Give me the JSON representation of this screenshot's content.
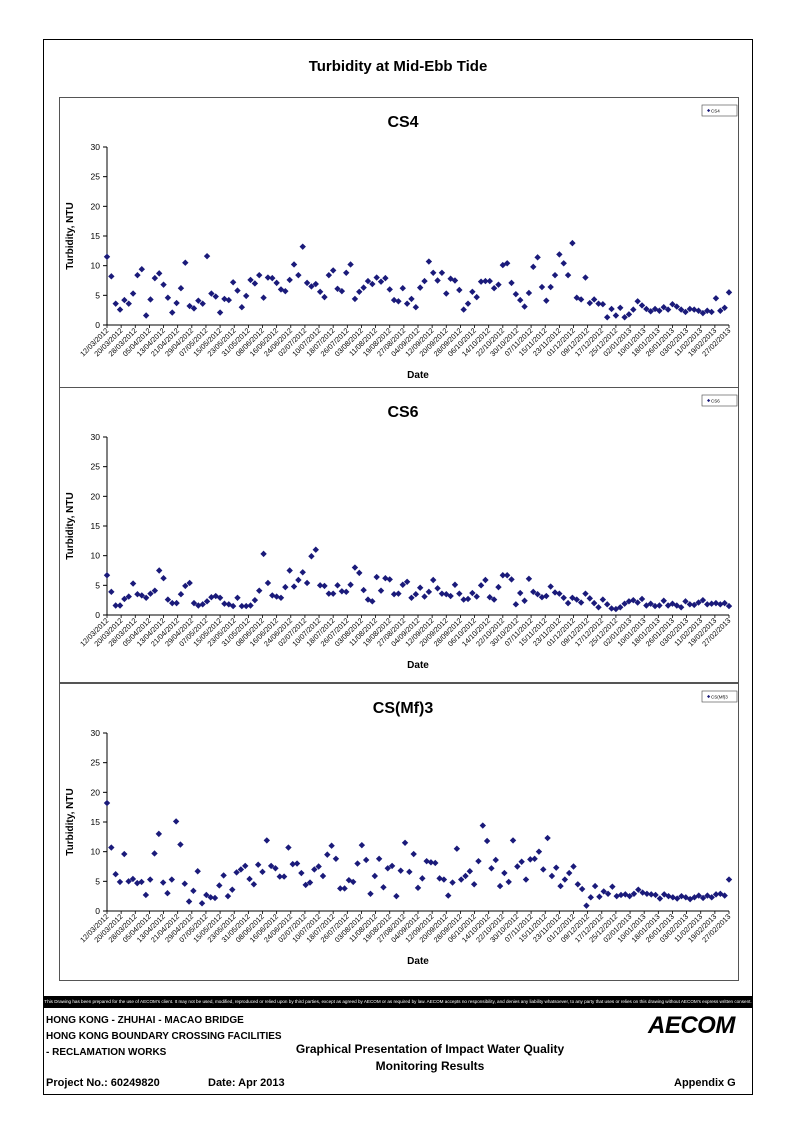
{
  "page": {
    "title": "Turbidity at Mid-Ebb Tide",
    "disclaimer": "This Drawing has been prepared for the use of AECOM's client. It may not be used, modified, reproduced or relied upon by third parties, except as agreed by AECOM or as required by law. AECOM accepts no responsibility, and denies any liability whatsoever, to any party that uses or relies on this drawing without AECOM's express written consent.",
    "footer": {
      "line1": "HONG KONG - ZHUHAI - MACAO BRIDGE",
      "line2": "HONG KONG BOUNDARY CROSSING FACILITIES",
      "line3": "- RECLAMATION WORKS",
      "center1": "Graphical Presentation of Impact Water Quality",
      "center2": "Monitoring Results",
      "project": "Project No.: 60249820",
      "date": "Date: Apr 2013",
      "appendix": "Appendix G",
      "logo": "AECOM"
    }
  },
  "chart_data": [
    {
      "type": "scatter",
      "title": "CS4",
      "xlabel": "Date",
      "ylabel": "Turbidity, NTU",
      "ylim": [
        0,
        30
      ],
      "yticks": [
        0,
        5,
        10,
        15,
        20,
        25,
        30
      ],
      "legend": "top-right",
      "marker": "diamond",
      "color": "#1a1a7a",
      "x_tick_labels": [
        "12/03/2012",
        "20/03/2012",
        "28/03/2012",
        "05/04/2012",
        "13/04/2012",
        "21/04/2012",
        "29/04/2012",
        "07/05/2012",
        "15/05/2012",
        "23/05/2012",
        "31/05/2012",
        "08/06/2012",
        "16/06/2012",
        "24/06/2012",
        "02/07/2012",
        "10/07/2012",
        "18/07/2012",
        "26/07/2012",
        "03/08/2012",
        "11/08/2012",
        "19/08/2012",
        "27/08/2012",
        "04/09/2012",
        "12/09/2012",
        "20/09/2012",
        "28/09/2012",
        "06/10/2012",
        "14/10/2012",
        "22/10/2012",
        "30/10/2012",
        "07/11/2012",
        "15/11/2012",
        "23/11/2012",
        "01/12/2012",
        "09/12/2012",
        "17/12/2012",
        "25/12/2012",
        "02/01/2013",
        "10/01/2013",
        "18/01/2013",
        "26/01/2013",
        "03/02/2013",
        "11/02/2013",
        "19/02/2013",
        "27/02/2013"
      ],
      "series": [
        {
          "name": "CS4",
          "values": [
            11.5,
            8.2,
            3.6,
            2.6,
            4.2,
            3.6,
            5.3,
            8.4,
            9.4,
            1.6,
            4.3,
            7.9,
            8.7,
            6.8,
            4.6,
            2.1,
            3.7,
            6.2,
            10.5,
            3.2,
            2.8,
            4.1,
            3.6,
            11.6,
            5.3,
            4.8,
            2.1,
            4.4,
            4.2,
            7.2,
            5.8,
            3.0,
            4.9,
            7.6,
            7.0,
            8.4,
            4.6,
            8.0,
            7.9,
            7.1,
            6.0,
            5.7,
            7.6,
            10.2,
            8.4,
            13.2,
            7.1,
            6.5,
            6.9,
            5.6,
            4.7,
            8.4,
            9.2,
            6.1,
            5.7,
            8.8,
            10.2,
            4.4,
            5.6,
            6.3,
            7.4,
            6.9,
            8.0,
            7.3,
            7.9,
            6.0,
            4.2,
            4.0,
            6.2,
            3.6,
            4.4,
            3.0,
            6.3,
            7.4,
            10.7,
            8.8,
            7.5,
            8.8,
            5.3,
            7.8,
            7.5,
            5.9,
            2.6,
            3.6,
            5.6,
            4.7,
            7.3,
            7.4,
            7.4,
            6.2,
            6.8,
            10.1,
            10.4,
            7.1,
            5.2,
            4.2,
            3.1,
            5.4,
            9.8,
            11.4,
            6.4,
            4.1,
            6.4,
            8.4,
            11.9,
            10.4,
            8.4,
            13.8,
            4.6,
            4.3,
            8.0,
            3.7,
            4.3,
            3.6,
            3.5,
            1.3,
            2.7,
            1.6,
            2.9,
            1.3,
            1.8,
            2.6,
            4.0,
            3.3,
            2.7,
            2.3,
            2.7,
            2.4,
            3.0,
            2.6,
            3.5,
            3.1,
            2.6,
            2.2,
            2.7,
            2.6,
            2.4,
            2.0,
            2.4,
            2.2,
            4.5,
            2.4,
            2.9,
            5.5
          ]
        }
      ]
    },
    {
      "type": "scatter",
      "title": "CS6",
      "xlabel": "Date",
      "ylabel": "Turbidity, NTU",
      "ylim": [
        0,
        30
      ],
      "yticks": [
        0,
        5,
        10,
        15,
        20,
        25,
        30
      ],
      "legend": "top-right",
      "marker": "diamond",
      "color": "#1a1a7a",
      "x_tick_labels": [
        "12/03/2012",
        "20/03/2012",
        "28/03/2012",
        "05/04/2012",
        "13/04/2012",
        "21/04/2012",
        "29/04/2012",
        "07/05/2012",
        "15/05/2012",
        "23/05/2012",
        "31/05/2012",
        "08/06/2012",
        "16/06/2012",
        "24/06/2012",
        "02/07/2012",
        "10/07/2012",
        "18/07/2012",
        "26/07/2012",
        "03/08/2012",
        "11/08/2012",
        "19/08/2012",
        "27/08/2012",
        "04/09/2012",
        "12/09/2012",
        "20/09/2012",
        "28/09/2012",
        "06/10/2012",
        "14/10/2012",
        "22/10/2012",
        "30/10/2012",
        "07/11/2012",
        "15/11/2012",
        "23/11/2012",
        "01/12/2012",
        "09/12/2012",
        "17/12/2012",
        "25/12/2012",
        "02/01/2013",
        "10/01/2013",
        "18/01/2013",
        "26/01/2013",
        "03/02/2013",
        "11/02/2013",
        "19/02/2013",
        "27/02/2013"
      ],
      "series": [
        {
          "name": "CS6",
          "values": [
            6.7,
            3.9,
            1.6,
            1.6,
            2.7,
            3.1,
            5.3,
            3.5,
            3.3,
            2.9,
            3.6,
            4.1,
            7.5,
            6.2,
            2.6,
            2.0,
            2.0,
            3.5,
            4.9,
            5.4,
            2.0,
            1.6,
            1.8,
            2.3,
            3.0,
            3.2,
            2.9,
            1.9,
            1.8,
            1.5,
            2.9,
            1.5,
            1.5,
            1.6,
            2.5,
            4.1,
            10.3,
            5.4,
            3.3,
            3.1,
            2.9,
            4.7,
            7.5,
            4.8,
            5.9,
            7.2,
            5.4,
            9.9,
            11.0,
            5.0,
            4.9,
            3.6,
            3.6,
            5.0,
            4.0,
            3.9,
            5.1,
            8.0,
            7.1,
            4.2,
            2.6,
            2.3,
            6.4,
            4.1,
            6.2,
            6.0,
            3.5,
            3.6,
            5.1,
            5.6,
            2.9,
            3.5,
            4.6,
            3.1,
            3.9,
            5.9,
            4.5,
            3.6,
            3.5,
            3.2,
            5.1,
            3.6,
            2.6,
            2.7,
            3.7,
            3.1,
            5.0,
            5.9,
            3.0,
            2.6,
            4.7,
            6.7,
            6.7,
            6.0,
            1.8,
            3.7,
            2.4,
            6.1,
            3.9,
            3.5,
            3.0,
            3.2,
            4.8,
            3.8,
            3.6,
            2.9,
            2.0,
            2.9,
            2.6,
            2.1,
            3.6,
            2.8,
            2.0,
            1.3,
            2.6,
            1.8,
            1.1,
            1.0,
            1.3,
            1.9,
            2.3,
            2.5,
            2.1,
            2.7,
            1.6,
            1.9,
            1.5,
            1.6,
            2.4,
            1.6,
            1.9,
            1.6,
            1.3,
            2.3,
            1.8,
            1.7,
            2.1,
            2.5,
            1.8,
            1.9,
            2.0,
            1.8,
            2.0,
            1.5
          ]
        }
      ]
    },
    {
      "type": "scatter",
      "title": "CS(Mf)3",
      "xlabel": "Date",
      "ylabel": "Turbidity, NTU",
      "ylim": [
        0,
        30
      ],
      "yticks": [
        0,
        5,
        10,
        15,
        20,
        25,
        30
      ],
      "legend": "top-right",
      "marker": "diamond",
      "color": "#1a1a7a",
      "x_tick_labels": [
        "12/03/2012",
        "20/03/2012",
        "28/03/2012",
        "05/04/2012",
        "13/04/2012",
        "21/04/2012",
        "29/04/2012",
        "07/05/2012",
        "15/05/2012",
        "23/05/2012",
        "31/05/2012",
        "08/06/2012",
        "16/06/2012",
        "24/06/2012",
        "02/07/2012",
        "10/07/2012",
        "18/07/2012",
        "26/07/2012",
        "03/08/2012",
        "11/08/2012",
        "19/08/2012",
        "27/08/2012",
        "04/09/2012",
        "12/09/2012",
        "20/09/2012",
        "28/09/2012",
        "06/10/2012",
        "14/10/2012",
        "22/10/2012",
        "30/10/2012",
        "07/11/2012",
        "15/11/2012",
        "23/11/2012",
        "01/12/2012",
        "09/12/2012",
        "17/12/2012",
        "25/12/2012",
        "02/01/2013",
        "10/01/2013",
        "18/01/2013",
        "26/01/2013",
        "03/02/2013",
        "11/02/2013",
        "19/02/2013",
        "27/02/2013"
      ],
      "series": [
        {
          "name": "CS(Mf)3",
          "values": [
            18.2,
            10.7,
            6.2,
            4.9,
            9.6,
            5.0,
            5.4,
            4.7,
            4.9,
            2.7,
            5.3,
            9.7,
            13.0,
            4.8,
            3.0,
            5.3,
            15.1,
            11.2,
            4.6,
            1.6,
            3.4,
            6.7,
            1.3,
            2.7,
            2.3,
            2.2,
            4.3,
            6.0,
            2.5,
            3.6,
            6.5,
            7.0,
            7.6,
            5.4,
            4.5,
            7.8,
            6.6,
            11.9,
            7.6,
            7.2,
            5.8,
            5.8,
            10.7,
            7.9,
            8.0,
            6.4,
            4.4,
            4.8,
            7.0,
            7.5,
            5.9,
            9.5,
            11.0,
            8.8,
            3.8,
            3.8,
            5.2,
            4.9,
            8.0,
            11.1,
            8.6,
            2.9,
            5.9,
            8.8,
            4.0,
            7.2,
            7.6,
            2.5,
            6.8,
            11.5,
            6.6,
            9.6,
            3.9,
            5.5,
            8.4,
            8.2,
            8.1,
            5.5,
            5.3,
            2.6,
            4.8,
            10.5,
            5.3,
            5.9,
            6.7,
            4.5,
            8.4,
            14.4,
            11.8,
            7.2,
            8.6,
            4.2,
            6.4,
            4.9,
            11.9,
            7.5,
            8.3,
            5.3,
            8.7,
            8.8,
            10.0,
            7.0,
            12.3,
            5.9,
            7.3,
            4.2,
            5.3,
            6.4,
            7.5,
            4.5,
            3.7,
            0.9,
            2.3,
            4.2,
            2.4,
            3.3,
            2.9,
            4.1,
            2.5,
            2.7,
            2.8,
            2.5,
            2.9,
            3.6,
            3.1,
            2.9,
            2.8,
            2.7,
            2.1,
            2.8,
            2.5,
            2.3,
            2.1,
            2.5,
            2.3,
            2.0,
            2.3,
            2.6,
            2.2,
            2.6,
            2.3,
            2.8,
            2.9,
            2.6,
            5.3
          ]
        }
      ]
    }
  ]
}
